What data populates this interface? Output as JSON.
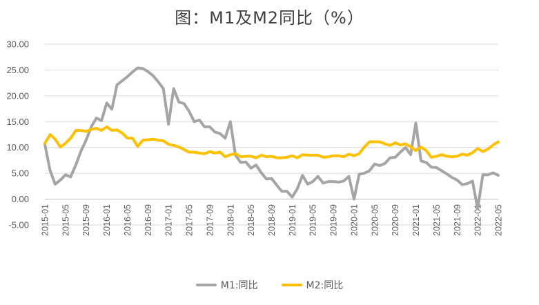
{
  "chart_data": {
    "type": "line",
    "title": "图：M1及M2同比（%）",
    "xlabel": "",
    "ylabel": "",
    "ylim": [
      -5,
      30
    ],
    "y_ticks": [
      "30.00",
      "25.00",
      "20.00",
      "15.00",
      "10.00",
      "5.00",
      "0.00",
      "-5.00"
    ],
    "x_tick_labels": [
      "2015-01",
      "2015-05",
      "2015-09",
      "2016-01",
      "2016-05",
      "2016-09",
      "2017-01",
      "2017-05",
      "2017-09",
      "2018-01",
      "2018-05",
      "2018-09",
      "2019-01",
      "2019-05",
      "2019-09",
      "2020-01",
      "2020-05",
      "2020-09",
      "2021-01",
      "2021-05",
      "2021-09",
      "2022-01",
      "2022-05"
    ],
    "grid": "horizontal",
    "legend_position": "bottom",
    "x": [
      "2015-01",
      "2015-02",
      "2015-03",
      "2015-04",
      "2015-05",
      "2015-06",
      "2015-07",
      "2015-08",
      "2015-09",
      "2015-10",
      "2015-11",
      "2015-12",
      "2016-01",
      "2016-02",
      "2016-03",
      "2016-04",
      "2016-05",
      "2016-06",
      "2016-07",
      "2016-08",
      "2016-09",
      "2016-10",
      "2016-11",
      "2016-12",
      "2017-01",
      "2017-02",
      "2017-03",
      "2017-04",
      "2017-05",
      "2017-06",
      "2017-07",
      "2017-08",
      "2017-09",
      "2017-10",
      "2017-11",
      "2017-12",
      "2018-01",
      "2018-02",
      "2018-03",
      "2018-04",
      "2018-05",
      "2018-06",
      "2018-07",
      "2018-08",
      "2018-09",
      "2018-10",
      "2018-11",
      "2018-12",
      "2019-01",
      "2019-02",
      "2019-03",
      "2019-04",
      "2019-05",
      "2019-06",
      "2019-07",
      "2019-08",
      "2019-09",
      "2019-10",
      "2019-11",
      "2019-12",
      "2020-01",
      "2020-02",
      "2020-03",
      "2020-04",
      "2020-05",
      "2020-06",
      "2020-07",
      "2020-08",
      "2020-09",
      "2020-10",
      "2020-11",
      "2020-12",
      "2021-01",
      "2021-02",
      "2021-03",
      "2021-04",
      "2021-05",
      "2021-06",
      "2021-07",
      "2021-08",
      "2021-09",
      "2021-10",
      "2021-11",
      "2021-12",
      "2022-01",
      "2022-02",
      "2022-03",
      "2022-04",
      "2022-05"
    ],
    "series": [
      {
        "name": "M1:同比",
        "color": "#a5a5a5",
        "values": [
          10.6,
          5.6,
          2.9,
          3.7,
          4.7,
          4.3,
          6.6,
          9.3,
          11.4,
          14.0,
          15.7,
          15.2,
          18.6,
          17.4,
          22.1,
          22.9,
          23.7,
          24.6,
          25.4,
          25.3,
          24.7,
          23.9,
          22.7,
          21.4,
          14.5,
          21.4,
          18.8,
          18.5,
          17.0,
          15.0,
          15.3,
          14.0,
          14.0,
          13.0,
          12.7,
          11.8,
          15.0,
          8.5,
          7.1,
          7.2,
          6.0,
          6.6,
          5.1,
          3.9,
          4.0,
          2.7,
          1.5,
          1.5,
          0.4,
          2.0,
          4.6,
          2.9,
          3.4,
          4.4,
          3.1,
          3.4,
          3.4,
          3.3,
          3.5,
          4.4,
          0.0,
          4.8,
          5.0,
          5.5,
          6.8,
          6.5,
          6.9,
          8.0,
          8.1,
          9.1,
          10.0,
          8.6,
          14.7,
          7.4,
          7.1,
          6.2,
          6.1,
          5.5,
          4.9,
          4.2,
          3.7,
          2.8,
          3.0,
          3.5,
          -1.9,
          4.7,
          4.7,
          5.1,
          4.6
        ]
      },
      {
        "name": "M2:同比",
        "color": "#ffc000",
        "values": [
          10.8,
          12.5,
          11.6,
          10.1,
          10.8,
          11.8,
          13.3,
          13.3,
          13.1,
          13.5,
          13.7,
          13.3,
          14.0,
          13.3,
          13.4,
          12.8,
          11.8,
          11.8,
          10.2,
          11.4,
          11.5,
          11.6,
          11.4,
          11.3,
          10.6,
          10.4,
          10.1,
          9.6,
          9.1,
          9.1,
          8.9,
          8.8,
          9.2,
          8.9,
          9.1,
          8.2,
          8.6,
          8.8,
          8.2,
          8.3,
          8.3,
          8.0,
          8.5,
          8.2,
          8.3,
          8.0,
          8.0,
          8.1,
          8.4,
          8.0,
          8.6,
          8.5,
          8.5,
          8.5,
          8.1,
          8.2,
          8.4,
          8.4,
          8.2,
          8.7,
          8.4,
          8.8,
          10.1,
          11.1,
          11.1,
          11.1,
          10.7,
          10.4,
          10.9,
          10.5,
          10.7,
          10.1,
          9.4,
          10.1,
          9.4,
          8.1,
          8.3,
          8.6,
          8.3,
          8.2,
          8.3,
          8.7,
          8.5,
          9.0,
          9.8,
          9.2,
          9.7,
          10.5,
          11.1
        ]
      }
    ]
  }
}
